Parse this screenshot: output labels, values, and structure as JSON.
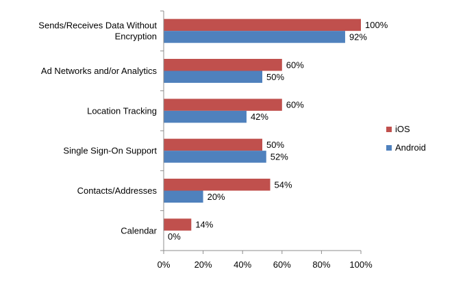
{
  "chart_data": {
    "type": "bar",
    "orientation": "horizontal",
    "categories": [
      "Sends/Receives Data Without Encryption",
      "Ad Networks and/or Analytics",
      "Location Tracking",
      "Single Sign-On Support",
      "Contacts/Addresses",
      "Calendar"
    ],
    "category_lines": [
      [
        "Sends/Receives Data Without",
        "Encryption"
      ],
      [
        "Ad Networks and/or Analytics"
      ],
      [
        "Location Tracking"
      ],
      [
        "Single Sign-On Support"
      ],
      [
        "Contacts/Addresses"
      ],
      [
        "Calendar"
      ]
    ],
    "series": [
      {
        "name": "iOS",
        "color": "#C0504D",
        "values": [
          100,
          60,
          60,
          50,
          54,
          14
        ],
        "labels": [
          "100%",
          "60%",
          "60%",
          "50%",
          "54%",
          "14%"
        ]
      },
      {
        "name": "Android",
        "color": "#4F81BD",
        "values": [
          92,
          50,
          42,
          52,
          20,
          0
        ],
        "labels": [
          "92%",
          "50%",
          "42%",
          "52%",
          "20%",
          "0%"
        ]
      }
    ],
    "x_ticks": [
      0,
      20,
      40,
      60,
      80,
      100
    ],
    "x_tick_labels": [
      "0%",
      "20%",
      "40%",
      "60%",
      "80%",
      "100%"
    ],
    "xlim": [
      0,
      100
    ],
    "title": "",
    "xlabel": "",
    "ylabel": "",
    "grid": false,
    "legend_position": "right"
  }
}
